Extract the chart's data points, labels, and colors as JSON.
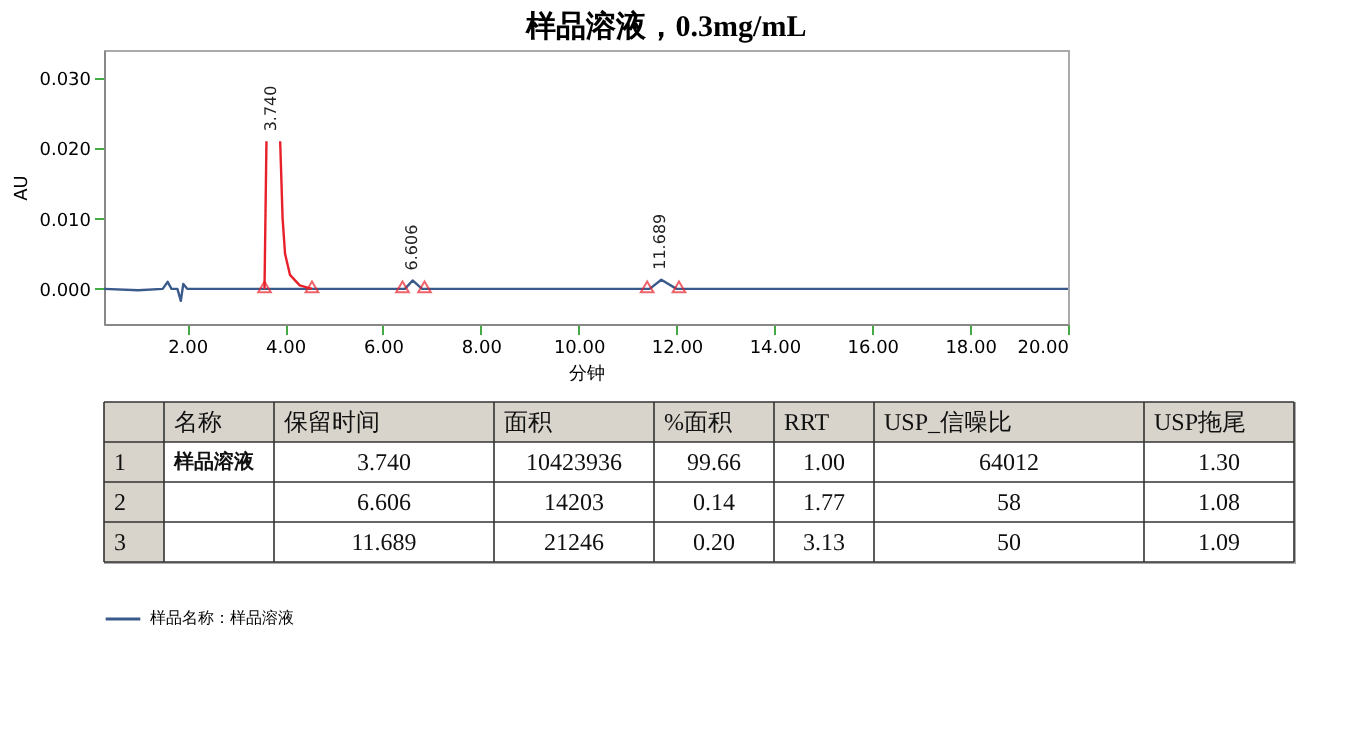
{
  "chart_data": [
    {
      "type": "line",
      "title": "样品溶液，0.3mg/mL",
      "xlabel": "分钟",
      "ylabel": "AU",
      "xlim": [
        0.3,
        20
      ],
      "ylim": [
        -0.005,
        0.034
      ],
      "xticks": [
        {
          "value": 2,
          "label": "2.00"
        },
        {
          "value": 4,
          "label": "4.00"
        },
        {
          "value": 6,
          "label": "6.00"
        },
        {
          "value": 8,
          "label": "8.00"
        },
        {
          "value": 10,
          "label": "10.00"
        },
        {
          "value": 12,
          "label": "12.00"
        },
        {
          "value": 14,
          "label": "14.00"
        },
        {
          "value": 16,
          "label": "16.00"
        },
        {
          "value": 18,
          "label": "18.00"
        },
        {
          "value": 20,
          "label": "20.00"
        }
      ],
      "yticks": [
        {
          "value": 0,
          "label": "0.000"
        },
        {
          "value": 0.01,
          "label": "0.010"
        },
        {
          "value": 0.02,
          "label": "0.020"
        },
        {
          "value": 0.03,
          "label": "0.030"
        }
      ],
      "grid": false,
      "legend": "bottom",
      "marker": "none",
      "line_style": "solid",
      "series": [
        {
          "name": "样品名称：样品溶液",
          "color": "#3b5a8c",
          "x": [
            0.3,
            1.0,
            1.5,
            1.6,
            1.68,
            1.8,
            1.87,
            1.92,
            2.0,
            3.58,
            4.55,
            6.45,
            6.606,
            6.8,
            11.45,
            11.689,
            12.0,
            20.0
          ],
          "values": [
            0,
            -0.0002,
            0,
            0.001,
            0,
            0,
            -0.0017,
            0.0007,
            0,
            0,
            0,
            0,
            0.0012,
            0,
            0,
            0.0013,
            0,
            0
          ]
        },
        {
          "color": "#e8202a",
          "x": [
            3.58,
            3.62,
            3.74,
            3.9,
            3.95,
            4.0,
            4.1,
            4.3,
            4.55
          ],
          "values": [
            0,
            0.021,
            null,
            0.021,
            0.01,
            0.005,
            0.002,
            0.0005,
            0
          ]
        },
        {
          "type": "scatter",
          "marker": "triangle",
          "color": "#e8202a",
          "x": [
            3.58,
            4.55,
            6.4,
            6.85,
            11.4,
            12.05
          ],
          "values": [
            0,
            0,
            0,
            0,
            0,
            0
          ]
        }
      ],
      "annotations": [
        {
          "text": "3.740",
          "x": 3.74,
          "y": 0.021
        },
        {
          "text": "6.606",
          "x": 6.606,
          "y": 0.0012
        },
        {
          "text": "11.689",
          "x": 11.689,
          "y": 0.0013
        }
      ]
    },
    {
      "type": "heatmap",
      "categories": [
        "名称",
        "保留时间",
        "面积",
        "%面积",
        "RRT",
        "USP_信噪比",
        "USP拖尾"
      ],
      "y_categories": [
        "1",
        "2",
        "3"
      ],
      "cells": [
        [
          null,
          3.74,
          10423936,
          99.66,
          1.0,
          64012,
          1.3
        ],
        [
          null,
          6.606,
          14203,
          0.14,
          1.77,
          58,
          1.08
        ],
        [
          null,
          11.689,
          21246,
          0.2,
          3.13,
          50,
          1.09
        ]
      ],
      "cell_labels": [
        [
          "样品溶液",
          "3.740",
          "10423936",
          "99.66",
          "1.00",
          "64012",
          "1.30"
        ],
        [
          null,
          "6.606",
          "14203",
          "0.14",
          "1.77",
          "58",
          "1.08"
        ],
        [
          null,
          "11.689",
          "21246",
          "0.20",
          "3.13",
          "50",
          "1.09"
        ]
      ]
    }
  ]
}
